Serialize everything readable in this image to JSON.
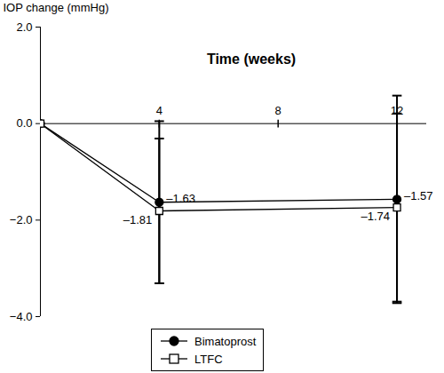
{
  "chart_data": {
    "type": "line",
    "x_label": "Time (weeks)",
    "y_label": "IOP change (mmHg)",
    "x": [
      0,
      4,
      12
    ],
    "xlim": [
      0,
      13
    ],
    "xticks": [
      4,
      8,
      12
    ],
    "ylim": [
      -4,
      2
    ],
    "yticks": [
      -4,
      -2,
      0,
      2
    ],
    "data_labels": true,
    "legend": "bottom",
    "series": [
      {
        "name": "Bimatoprost",
        "color": "#000000",
        "marker": "circle",
        "line_style": "solid",
        "values": [
          0,
          -1.63,
          -1.57
        ],
        "value_labels": [
          null,
          "–1.63",
          "–1.57"
        ],
        "errors": [
          0,
          1.68,
          2.15
        ]
      },
      {
        "name": "LTFC",
        "color": "#000000",
        "marker": "open-square",
        "line_style": "solid",
        "values": [
          0,
          -1.81,
          -1.74
        ],
        "value_labels": [
          null,
          "–1.81",
          "–1.74"
        ],
        "errors": [
          0,
          1.5,
          1.95
        ]
      }
    ]
  }
}
